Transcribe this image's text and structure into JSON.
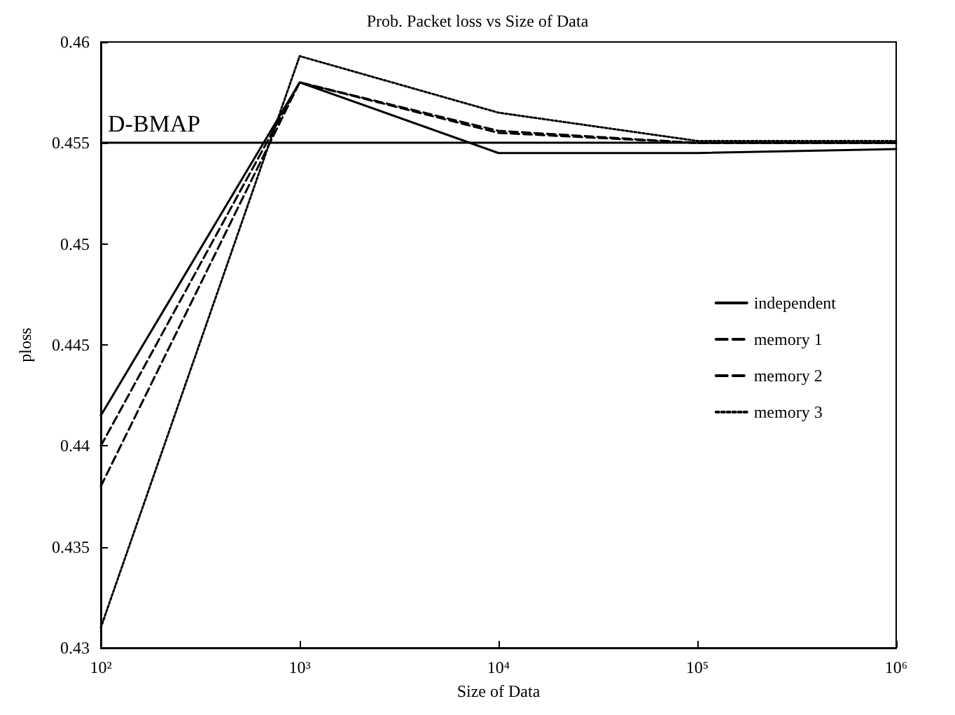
{
  "chart_data": {
    "type": "line",
    "title": "Prob. Packet loss vs Size of Data",
    "xlabel": "Size of Data",
    "ylabel": "ploss",
    "x": [
      100,
      1000,
      10000,
      100000,
      1000000
    ],
    "series": [
      {
        "name": "independent",
        "color": "#000000",
        "line_style": "solid",
        "values": [
          0.4415,
          0.458,
          0.4545,
          0.4545,
          0.4547
        ]
      },
      {
        "name": "memory 1",
        "color": "#000000",
        "line_style": "dashed",
        "values": [
          0.44,
          0.458,
          0.4556,
          0.455,
          0.455
        ]
      },
      {
        "name": "memory 2",
        "color": "#000000",
        "line_style": "dashed",
        "values": [
          0.438,
          0.458,
          0.4555,
          0.455,
          0.455
        ]
      },
      {
        "name": "memory 3",
        "color": "#000000",
        "line_style": "dotted",
        "values": [
          0.431,
          0.4593,
          0.4565,
          0.4551,
          0.4551
        ]
      }
    ],
    "ref_lines": [
      {
        "axis": "y",
        "value": 0.455,
        "label": "D-BMAP",
        "color": "#000000",
        "line_style": "solid"
      }
    ],
    "log": "x",
    "xlim": [
      100,
      1000000
    ],
    "xticks": [
      {
        "value": 100,
        "label": "10²"
      },
      {
        "value": 1000,
        "label": "10³"
      },
      {
        "value": 10000,
        "label": "10⁴"
      },
      {
        "value": 100000,
        "label": "10⁵"
      },
      {
        "value": 1000000,
        "label": "10⁶"
      }
    ],
    "ylim": [
      0.43,
      0.46
    ],
    "yticks": [
      0.43,
      0.435,
      0.44,
      0.445,
      0.45,
      0.455,
      0.46
    ],
    "grid": false,
    "legend": "right",
    "marker": "none"
  }
}
